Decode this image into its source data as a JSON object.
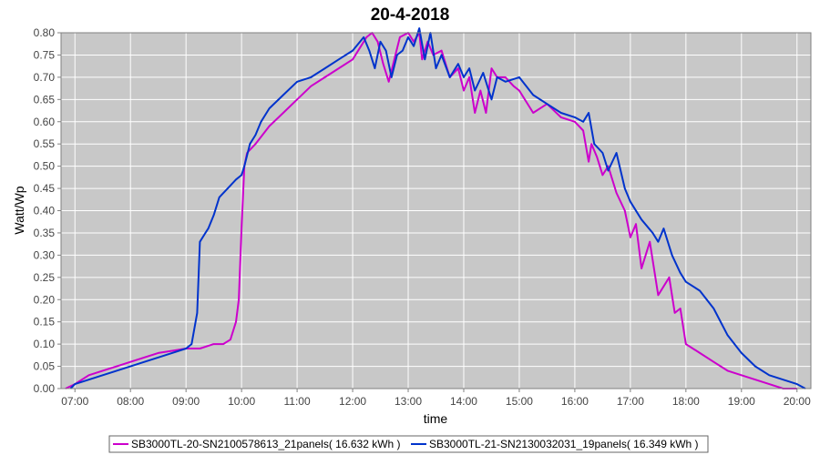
{
  "chart_data": {
    "type": "line",
    "title": "20-4-2018",
    "xlabel": "time",
    "ylabel": "Watt/Wp",
    "xlim": [
      6.75,
      20.25
    ],
    "ylim": [
      0,
      0.8
    ],
    "x_ticks": [
      7,
      8,
      9,
      10,
      11,
      12,
      13,
      14,
      15,
      16,
      17,
      18,
      19,
      20
    ],
    "x_tick_labels": [
      "07:00",
      "08:00",
      "09:00",
      "10:00",
      "11:00",
      "12:00",
      "13:00",
      "14:00",
      "15:00",
      "16:00",
      "17:00",
      "18:00",
      "19:00",
      "20:00"
    ],
    "y_ticks": [
      0,
      0.05,
      0.1,
      0.15,
      0.2,
      0.25,
      0.3,
      0.35,
      0.4,
      0.45,
      0.5,
      0.55,
      0.6,
      0.65,
      0.7,
      0.75,
      0.8
    ],
    "y_tick_labels": [
      "0.00",
      "0.05",
      "0.10",
      "0.15",
      "0.20",
      "0.25",
      "0.30",
      "0.35",
      "0.40",
      "0.45",
      "0.50",
      "0.55",
      "0.60",
      "0.65",
      "0.70",
      "0.75",
      "0.80"
    ],
    "grid": true,
    "legend_position": "bottom",
    "colors": {
      "plot_background": "#c8c8c8",
      "grid": "#ffffff"
    },
    "series": [
      {
        "name": "SB3000TL-20-SN2100578613_21panels( 16.632 kWh )",
        "color": "#cc00cc",
        "x": [
          6.83,
          7.0,
          7.25,
          7.5,
          7.75,
          8.0,
          8.25,
          8.5,
          8.75,
          9.0,
          9.25,
          9.5,
          9.67,
          9.8,
          9.9,
          9.95,
          10.0,
          10.05,
          10.1,
          10.25,
          10.5,
          10.75,
          11.0,
          11.25,
          11.5,
          11.75,
          12.0,
          12.15,
          12.25,
          12.35,
          12.45,
          12.55,
          12.65,
          12.75,
          12.85,
          13.0,
          13.1,
          13.2,
          13.25,
          13.35,
          13.45,
          13.6,
          13.75,
          13.9,
          14.0,
          14.1,
          14.2,
          14.3,
          14.4,
          14.5,
          14.6,
          14.75,
          14.9,
          15.0,
          15.25,
          15.5,
          15.75,
          16.0,
          16.15,
          16.25,
          16.3,
          16.4,
          16.5,
          16.6,
          16.75,
          16.9,
          17.0,
          17.1,
          17.2,
          17.35,
          17.5,
          17.7,
          17.8,
          17.9,
          18.0,
          18.25,
          18.5,
          18.75,
          19.0,
          19.25,
          19.5,
          19.75,
          20.0
        ],
        "values": [
          0.0,
          0.01,
          0.03,
          0.04,
          0.05,
          0.06,
          0.07,
          0.08,
          0.085,
          0.09,
          0.09,
          0.1,
          0.1,
          0.11,
          0.15,
          0.2,
          0.36,
          0.5,
          0.53,
          0.55,
          0.59,
          0.62,
          0.65,
          0.68,
          0.7,
          0.72,
          0.74,
          0.77,
          0.79,
          0.8,
          0.78,
          0.73,
          0.69,
          0.74,
          0.79,
          0.8,
          0.78,
          0.8,
          0.74,
          0.78,
          0.75,
          0.76,
          0.7,
          0.72,
          0.67,
          0.7,
          0.62,
          0.67,
          0.62,
          0.72,
          0.7,
          0.7,
          0.68,
          0.67,
          0.62,
          0.64,
          0.61,
          0.6,
          0.58,
          0.51,
          0.55,
          0.52,
          0.48,
          0.5,
          0.44,
          0.4,
          0.34,
          0.37,
          0.27,
          0.33,
          0.21,
          0.25,
          0.17,
          0.18,
          0.1,
          0.08,
          0.06,
          0.04,
          0.03,
          0.02,
          0.01,
          0.0,
          0.0
        ]
      },
      {
        "name": "SB3000TL-21-SN2130032031_19panels( 16.349 kWh )",
        "color": "#0033cc",
        "x": [
          6.92,
          7.0,
          7.25,
          7.5,
          7.75,
          8.0,
          8.25,
          8.5,
          8.75,
          9.0,
          9.1,
          9.2,
          9.25,
          9.35,
          9.4,
          9.5,
          9.6,
          9.75,
          9.9,
          10.0,
          10.05,
          10.15,
          10.25,
          10.35,
          10.5,
          10.75,
          11.0,
          11.25,
          11.5,
          11.75,
          12.0,
          12.2,
          12.3,
          12.4,
          12.5,
          12.6,
          12.7,
          12.8,
          12.9,
          13.0,
          13.1,
          13.2,
          13.3,
          13.4,
          13.5,
          13.6,
          13.75,
          13.9,
          14.0,
          14.1,
          14.2,
          14.35,
          14.5,
          14.6,
          14.75,
          15.0,
          15.25,
          15.5,
          15.75,
          16.0,
          16.15,
          16.25,
          16.35,
          16.5,
          16.6,
          16.75,
          16.9,
          17.0,
          17.2,
          17.4,
          17.5,
          17.6,
          17.75,
          17.9,
          18.0,
          18.25,
          18.5,
          18.75,
          19.0,
          19.25,
          19.5,
          19.75,
          20.0,
          20.15
        ],
        "values": [
          0.0,
          0.01,
          0.02,
          0.03,
          0.04,
          0.05,
          0.06,
          0.07,
          0.08,
          0.09,
          0.1,
          0.17,
          0.33,
          0.35,
          0.36,
          0.39,
          0.43,
          0.45,
          0.47,
          0.48,
          0.5,
          0.55,
          0.57,
          0.6,
          0.63,
          0.66,
          0.69,
          0.7,
          0.72,
          0.74,
          0.76,
          0.79,
          0.76,
          0.72,
          0.78,
          0.76,
          0.7,
          0.75,
          0.76,
          0.79,
          0.77,
          0.81,
          0.74,
          0.8,
          0.72,
          0.75,
          0.7,
          0.73,
          0.7,
          0.72,
          0.67,
          0.71,
          0.65,
          0.7,
          0.69,
          0.7,
          0.66,
          0.64,
          0.62,
          0.61,
          0.6,
          0.62,
          0.55,
          0.53,
          0.49,
          0.53,
          0.45,
          0.42,
          0.38,
          0.35,
          0.33,
          0.36,
          0.3,
          0.26,
          0.24,
          0.22,
          0.18,
          0.12,
          0.08,
          0.05,
          0.03,
          0.02,
          0.01,
          0.0
        ]
      }
    ]
  }
}
